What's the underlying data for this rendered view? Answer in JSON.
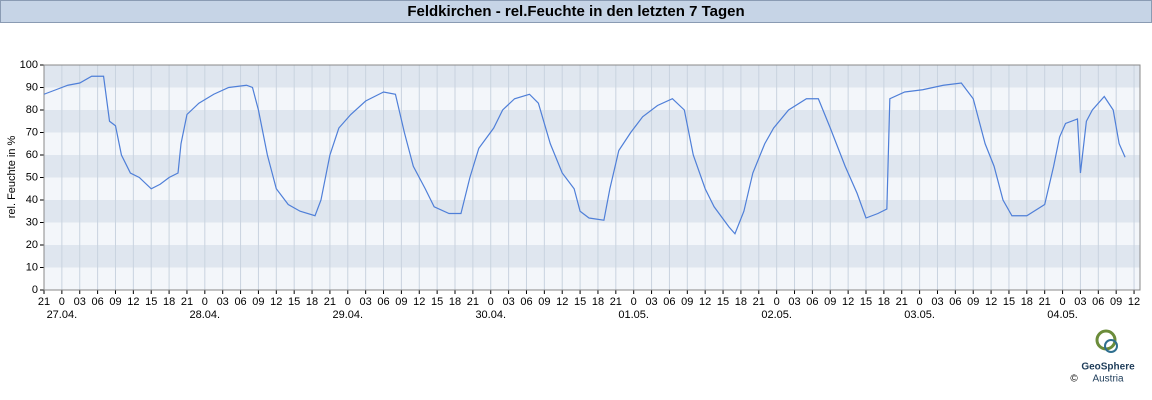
{
  "chart_data": {
    "type": "line",
    "title": "Feldkirchen - rel.Feuchte in den letzten 7 Tagen",
    "y_label": "rel. Feuchte in %",
    "xlim": [
      0,
      184
    ],
    "ylim": [
      0,
      100
    ],
    "yticks": [
      0,
      10,
      20,
      30,
      40,
      50,
      60,
      70,
      80,
      90,
      100
    ],
    "xticks": [
      {
        "value": 0,
        "label": "21"
      },
      {
        "value": 3,
        "label": "0"
      },
      {
        "value": 6,
        "label": "03"
      },
      {
        "value": 9,
        "label": "06"
      },
      {
        "value": 12,
        "label": "09"
      },
      {
        "value": 15,
        "label": "12"
      },
      {
        "value": 18,
        "label": "15"
      },
      {
        "value": 21,
        "label": "18"
      },
      {
        "value": 24,
        "label": "21"
      },
      {
        "value": 27,
        "label": "0"
      },
      {
        "value": 30,
        "label": "03"
      },
      {
        "value": 33,
        "label": "06"
      },
      {
        "value": 36,
        "label": "09"
      },
      {
        "value": 39,
        "label": "12"
      },
      {
        "value": 42,
        "label": "15"
      },
      {
        "value": 45,
        "label": "18"
      },
      {
        "value": 48,
        "label": "21"
      },
      {
        "value": 51,
        "label": "0"
      },
      {
        "value": 54,
        "label": "03"
      },
      {
        "value": 57,
        "label": "06"
      },
      {
        "value": 60,
        "label": "09"
      },
      {
        "value": 63,
        "label": "12"
      },
      {
        "value": 66,
        "label": "15"
      },
      {
        "value": 69,
        "label": "18"
      },
      {
        "value": 72,
        "label": "21"
      },
      {
        "value": 75,
        "label": "0"
      },
      {
        "value": 78,
        "label": "03"
      },
      {
        "value": 81,
        "label": "06"
      },
      {
        "value": 84,
        "label": "09"
      },
      {
        "value": 87,
        "label": "12"
      },
      {
        "value": 90,
        "label": "15"
      },
      {
        "value": 93,
        "label": "18"
      },
      {
        "value": 96,
        "label": "21"
      },
      {
        "value": 99,
        "label": "0"
      },
      {
        "value": 102,
        "label": "03"
      },
      {
        "value": 105,
        "label": "06"
      },
      {
        "value": 108,
        "label": "09"
      },
      {
        "value": 111,
        "label": "12"
      },
      {
        "value": 114,
        "label": "15"
      },
      {
        "value": 117,
        "label": "18"
      },
      {
        "value": 120,
        "label": "21"
      },
      {
        "value": 123,
        "label": "0"
      },
      {
        "value": 126,
        "label": "03"
      },
      {
        "value": 129,
        "label": "06"
      },
      {
        "value": 132,
        "label": "09"
      },
      {
        "value": 135,
        "label": "12"
      },
      {
        "value": 138,
        "label": "15"
      },
      {
        "value": 141,
        "label": "18"
      },
      {
        "value": 144,
        "label": "21"
      },
      {
        "value": 147,
        "label": "0"
      },
      {
        "value": 150,
        "label": "03"
      },
      {
        "value": 153,
        "label": "06"
      },
      {
        "value": 156,
        "label": "09"
      },
      {
        "value": 159,
        "label": "12"
      },
      {
        "value": 162,
        "label": "15"
      },
      {
        "value": 165,
        "label": "18"
      },
      {
        "value": 168,
        "label": "21"
      },
      {
        "value": 171,
        "label": "0"
      },
      {
        "value": 174,
        "label": "03"
      },
      {
        "value": 177,
        "label": "06"
      },
      {
        "value": 180,
        "label": "09"
      },
      {
        "value": 183,
        "label": "12"
      }
    ],
    "date_ticks": [
      {
        "value": 3,
        "label": "27.04."
      },
      {
        "value": 27,
        "label": "28.04."
      },
      {
        "value": 51,
        "label": "29.04."
      },
      {
        "value": 75,
        "label": "30.04."
      },
      {
        "value": 99,
        "label": "01.05."
      },
      {
        "value": 123,
        "label": "02.05."
      },
      {
        "value": 147,
        "label": "03.05."
      },
      {
        "value": 171,
        "label": "04.05."
      }
    ],
    "grid": true,
    "x": [
      0,
      2,
      4,
      6,
      8,
      10,
      11,
      12,
      13,
      14.5,
      16,
      18,
      19.5,
      21,
      22.5,
      23,
      24,
      26,
      28.5,
      31,
      34,
      35,
      36,
      37.5,
      39,
      41,
      43,
      45.5,
      46.5,
      48,
      49.5,
      51.5,
      54,
      57,
      59,
      60.5,
      62,
      64,
      65.5,
      68,
      70,
      71.5,
      73,
      75.5,
      77,
      79,
      81.5,
      83,
      85,
      87,
      89,
      90,
      91.5,
      94,
      95,
      96.5,
      98.5,
      100.5,
      103,
      105.5,
      107.5,
      109,
      111,
      112.5,
      115,
      116,
      117.5,
      119,
      121,
      122.5,
      125,
      128,
      130,
      132,
      134.5,
      136.5,
      138,
      140,
      141.5,
      142,
      144.5,
      147.5,
      151,
      154,
      156,
      158,
      159.5,
      161,
      162.5,
      165,
      168,
      169.5,
      170.5,
      171.5,
      173.5,
      174,
      175,
      176,
      178,
      179.5,
      180.5,
      181.5
    ],
    "series": [
      {
        "color": "#4f7fd8",
        "values": [
          87,
          89,
          91,
          92,
          95,
          95,
          75,
          73,
          60,
          52,
          50,
          45,
          47,
          50,
          52,
          65,
          78,
          83,
          87,
          90,
          91,
          90,
          80,
          60,
          45,
          38,
          35,
          33,
          40,
          60,
          72,
          78,
          84,
          88,
          87,
          70,
          55,
          45,
          37,
          34,
          34,
          50,
          63,
          72,
          80,
          85,
          87,
          83,
          65,
          52,
          45,
          35,
          32,
          31,
          45,
          62,
          70,
          77,
          82,
          85,
          80,
          60,
          45,
          37,
          28,
          25,
          35,
          52,
          65,
          72,
          80,
          85,
          85,
          72,
          55,
          43,
          32,
          34,
          36,
          85,
          88,
          89,
          91,
          92,
          85,
          65,
          55,
          40,
          33,
          33,
          38,
          55,
          68,
          74,
          76,
          52,
          75,
          80,
          86,
          80,
          65,
          59
        ]
      }
    ]
  },
  "logo": {
    "copyright": "©",
    "name": "GeoSphere",
    "sub": "Austria"
  }
}
